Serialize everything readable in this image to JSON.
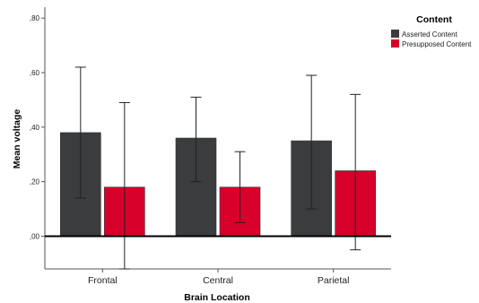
{
  "chart_data": {
    "type": "bar",
    "xlabel": "Brain Location",
    "ylabel": "Mean voltage",
    "categories": [
      "Frontal",
      "Central",
      "Parietal"
    ],
    "y_ticks": [
      ",00",
      ",20",
      ",40",
      ",60",
      ",80"
    ],
    "ylim": [
      -0.12,
      0.84
    ],
    "legend": {
      "title": "Content",
      "placement": "top-right"
    },
    "series": [
      {
        "name": "Asserted Content",
        "color": "#3b3c3e",
        "values": [
          0.38,
          0.36,
          0.35
        ],
        "error_low": [
          0.14,
          0.2,
          0.1
        ],
        "error_high": [
          0.62,
          0.51,
          0.59
        ]
      },
      {
        "name": "Presupposed Content",
        "color": "#d6002b",
        "values": [
          0.18,
          0.18,
          0.24
        ],
        "error_low": [
          -0.12,
          0.05,
          -0.05
        ],
        "error_high": [
          0.49,
          0.31,
          0.52
        ]
      }
    ],
    "grid": false,
    "reference_line_y": 0
  }
}
